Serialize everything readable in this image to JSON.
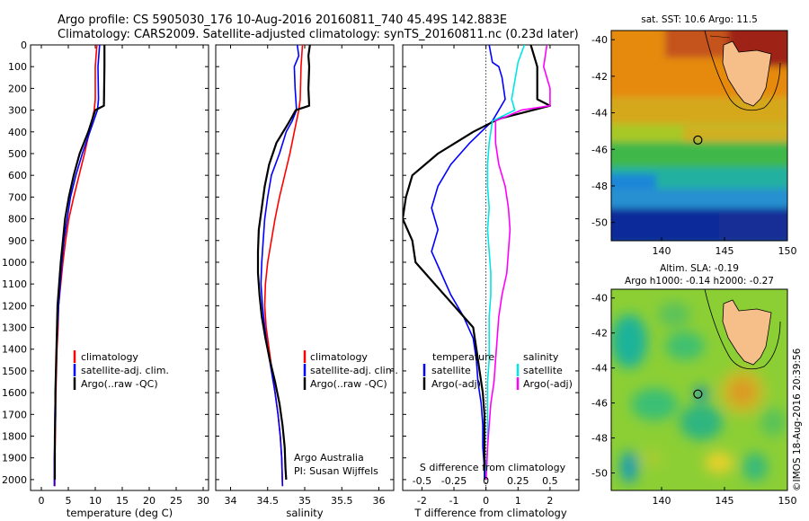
{
  "title": {
    "line1": "Argo profile: CS 5905030_176 10-Aug-2016 20160811_740 45.49S 142.883E",
    "line2": "Climatology: CARS2009. Satellite-adjusted climatology: synTS_20160811.nc (0.23d later)"
  },
  "depth_ticks": [
    "0",
    "100",
    "200",
    "300",
    "400",
    "500",
    "600",
    "700",
    "800",
    "900",
    "1000",
    "1100",
    "1200",
    "1300",
    "1400",
    "1500",
    "1600",
    "1700",
    "1800",
    "1900",
    "2000"
  ],
  "colors": {
    "climatology": "#ff0000",
    "satellite": "#0000ff",
    "argo": "#000000",
    "salinity_sat": "#00e5e5",
    "salinity_argo": "#ff00ff"
  },
  "chart_data": [
    {
      "type": "line",
      "xlabel": "temperature (deg C)",
      "xlim": [
        -2,
        31
      ],
      "ylim": [
        0,
        2050
      ],
      "xticks": [
        "0",
        "5",
        "10",
        "15",
        "20",
        "25",
        "30"
      ],
      "legend": [
        "climatology",
        "satellite-adj. clim.",
        "Argo(..raw -QC)"
      ],
      "legend_position": "lower-middle",
      "series": [
        {
          "name": "climatology",
          "points": [
            [
              10.3,
              0
            ],
            [
              10.0,
              100
            ],
            [
              10.0,
              250
            ],
            [
              9.8,
              300
            ],
            [
              8.9,
              400
            ],
            [
              8.0,
              500
            ],
            [
              7.0,
              600
            ],
            [
              6.0,
              700
            ],
            [
              5.1,
              800
            ],
            [
              4.5,
              900
            ],
            [
              4.0,
              1000
            ],
            [
              3.6,
              1100
            ],
            [
              3.2,
              1200
            ],
            [
              3.1,
              1300
            ],
            [
              2.9,
              1400
            ],
            [
              2.8,
              1500
            ],
            [
              2.7,
              1600
            ],
            [
              2.6,
              1700
            ],
            [
              2.6,
              1800
            ],
            [
              2.5,
              1900
            ],
            [
              2.5,
              2030
            ]
          ]
        },
        {
          "name": "satellite-adj. clim.",
          "points": [
            [
              10.8,
              0
            ],
            [
              10.5,
              100
            ],
            [
              10.6,
              250
            ],
            [
              10.4,
              300
            ],
            [
              9.0,
              400
            ],
            [
              7.6,
              500
            ],
            [
              6.4,
              600
            ],
            [
              5.4,
              700
            ],
            [
              4.8,
              800
            ],
            [
              4.2,
              900
            ],
            [
              3.8,
              1000
            ],
            [
              3.5,
              1100
            ],
            [
              3.2,
              1200
            ],
            [
              3.0,
              1300
            ],
            [
              2.8,
              1400
            ],
            [
              2.7,
              1500
            ],
            [
              2.6,
              1600
            ],
            [
              2.5,
              1700
            ],
            [
              2.5,
              1800
            ],
            [
              2.4,
              1900
            ],
            [
              2.4,
              2030
            ]
          ]
        },
        {
          "name": "Argo(..raw -QC)",
          "points": [
            [
              11.7,
              0
            ],
            [
              11.7,
              100
            ],
            [
              11.6,
              280
            ],
            [
              10.0,
              300
            ],
            [
              8.7,
              400
            ],
            [
              7.1,
              500
            ],
            [
              6.0,
              600
            ],
            [
              5.1,
              700
            ],
            [
              4.4,
              800
            ],
            [
              4.0,
              900
            ],
            [
              3.6,
              1000
            ],
            [
              3.3,
              1100
            ],
            [
              3.0,
              1200
            ],
            [
              2.9,
              1300
            ],
            [
              2.8,
              1400
            ],
            [
              2.7,
              1500
            ],
            [
              2.6,
              1600
            ],
            [
              2.6,
              1700
            ],
            [
              2.5,
              1800
            ],
            [
              2.5,
              1900
            ],
            [
              2.5,
              2000
            ]
          ]
        }
      ]
    },
    {
      "type": "line",
      "xlabel": "salinity",
      "xlim": [
        33.8,
        36.2
      ],
      "ylim": [
        0,
        2050
      ],
      "xticks": [
        "34",
        "34.5",
        "35",
        "35.5",
        "36"
      ],
      "legend": [
        "climatology",
        "satellite-adj. clim.",
        "Argo(..raw -QC)"
      ],
      "legend_position": "lower-right",
      "annotation": [
        "Argo Australia",
        "PI: Susan Wijffels"
      ],
      "series": [
        {
          "name": "climatology",
          "points": [
            [
              34.97,
              0
            ],
            [
              34.95,
              100
            ],
            [
              34.94,
              250
            ],
            [
              34.92,
              300
            ],
            [
              34.86,
              400
            ],
            [
              34.8,
              500
            ],
            [
              34.73,
              600
            ],
            [
              34.66,
              700
            ],
            [
              34.6,
              800
            ],
            [
              34.55,
              900
            ],
            [
              34.5,
              1000
            ],
            [
              34.47,
              1100
            ],
            [
              34.46,
              1200
            ],
            [
              34.48,
              1300
            ],
            [
              34.52,
              1400
            ],
            [
              34.56,
              1500
            ],
            [
              34.6,
              1600
            ],
            [
              34.64,
              1700
            ],
            [
              34.67,
              1800
            ],
            [
              34.69,
              1900
            ],
            [
              34.7,
              2030
            ]
          ]
        },
        {
          "name": "satellite-adj. clim.",
          "points": [
            [
              34.9,
              0
            ],
            [
              34.92,
              50
            ],
            [
              34.86,
              100
            ],
            [
              34.87,
              200
            ],
            [
              34.89,
              300
            ],
            [
              34.83,
              350
            ],
            [
              34.75,
              400
            ],
            [
              34.66,
              500
            ],
            [
              34.55,
              600
            ],
            [
              34.5,
              700
            ],
            [
              34.46,
              800
            ],
            [
              34.44,
              900
            ],
            [
              34.42,
              1000
            ],
            [
              34.41,
              1100
            ],
            [
              34.43,
              1200
            ],
            [
              34.46,
              1300
            ],
            [
              34.5,
              1400
            ],
            [
              34.55,
              1500
            ],
            [
              34.6,
              1600
            ],
            [
              34.64,
              1700
            ],
            [
              34.67,
              1800
            ],
            [
              34.69,
              1900
            ],
            [
              34.7,
              2030
            ]
          ]
        },
        {
          "name": "Argo(..raw -QC)",
          "points": [
            [
              35.07,
              0
            ],
            [
              35.05,
              50
            ],
            [
              35.06,
              100
            ],
            [
              35.05,
              200
            ],
            [
              35.06,
              280
            ],
            [
              34.88,
              300
            ],
            [
              34.78,
              360
            ],
            [
              34.62,
              450
            ],
            [
              34.52,
              550
            ],
            [
              34.46,
              650
            ],
            [
              34.42,
              750
            ],
            [
              34.38,
              850
            ],
            [
              34.37,
              950
            ],
            [
              34.37,
              1050
            ],
            [
              34.39,
              1150
            ],
            [
              34.42,
              1250
            ],
            [
              34.47,
              1350
            ],
            [
              34.53,
              1450
            ],
            [
              34.6,
              1550
            ],
            [
              34.66,
              1650
            ],
            [
              34.7,
              1750
            ],
            [
              34.73,
              1850
            ],
            [
              34.74,
              1950
            ],
            [
              34.75,
              2000
            ]
          ]
        }
      ]
    },
    {
      "type": "line",
      "xlabel": "T difference from climatology",
      "xlabel_secondary": "S difference from climatology",
      "xlim": [
        -2.6,
        2.9
      ],
      "ylim": [
        0,
        2050
      ],
      "xticks": [
        "-2",
        "-1",
        "0",
        "1",
        "2"
      ],
      "xticks_secondary": [
        "-0.5",
        "-0.25",
        "0",
        "0.25",
        "0.5"
      ],
      "legend_left_title": "temperature",
      "legend_left": [
        "satellite",
        "Argo(-adj)"
      ],
      "legend_right_title": "salinity",
      "legend_right": [
        "satellite",
        "Argo(-adj)"
      ],
      "legend_position": "lower-middle",
      "series": [
        {
          "name": "temperature satellite",
          "points": [
            [
              0.1,
              0
            ],
            [
              0.2,
              80
            ],
            [
              0.4,
              100
            ],
            [
              0.5,
              150
            ],
            [
              0.6,
              250
            ],
            [
              0.2,
              350
            ],
            [
              -0.5,
              450
            ],
            [
              -1.1,
              550
            ],
            [
              -1.5,
              650
            ],
            [
              -1.7,
              750
            ],
            [
              -1.5,
              850
            ],
            [
              -1.7,
              950
            ],
            [
              -1.4,
              1050
            ],
            [
              -1.1,
              1150
            ],
            [
              -0.7,
              1250
            ],
            [
              -0.4,
              1350
            ],
            [
              -0.3,
              1450
            ],
            [
              -0.25,
              1550
            ],
            [
              -0.15,
              1650
            ],
            [
              -0.1,
              1750
            ],
            [
              -0.1,
              1850
            ],
            [
              -0.05,
              1950
            ],
            [
              -0.05,
              2000
            ]
          ]
        },
        {
          "name": "temperature Argo(-adj)",
          "points": [
            [
              1.4,
              0
            ],
            [
              1.6,
              100
            ],
            [
              1.6,
              250
            ],
            [
              2.0,
              280
            ],
            [
              0.4,
              340
            ],
            [
              -0.4,
              400
            ],
            [
              -1.5,
              500
            ],
            [
              -2.3,
              600
            ],
            [
              -2.5,
              700
            ],
            [
              -2.6,
              800
            ],
            [
              -2.3,
              900
            ],
            [
              -2.2,
              1000
            ],
            [
              -1.6,
              1100
            ],
            [
              -1.0,
              1200
            ],
            [
              -0.4,
              1300
            ],
            [
              -0.3,
              1400
            ],
            [
              -0.2,
              1500
            ],
            [
              -0.1,
              1600
            ],
            [
              -0.05,
              1700
            ],
            [
              -0.05,
              1800
            ],
            [
              -0.05,
              1900
            ],
            [
              0.0,
              2000
            ]
          ]
        },
        {
          "name": "salinity satellite",
          "points": [
            [
              1.2,
              0
            ],
            [
              1.0,
              80
            ],
            [
              0.8,
              250
            ],
            [
              0.9,
              300
            ],
            [
              0.2,
              350
            ],
            [
              0.1,
              450
            ],
            [
              0.05,
              550
            ],
            [
              0.05,
              650
            ],
            [
              0.1,
              750
            ],
            [
              0.05,
              850
            ],
            [
              0.1,
              950
            ],
            [
              0.15,
              1050
            ],
            [
              0.15,
              1150
            ],
            [
              0.1,
              1250
            ],
            [
              0.1,
              1350
            ],
            [
              0.1,
              1450
            ],
            [
              0.05,
              1550
            ],
            [
              0.05,
              1650
            ],
            [
              0.05,
              1750
            ],
            [
              0.05,
              1850
            ],
            [
              0.0,
              1950
            ],
            [
              0.0,
              2000
            ]
          ]
        },
        {
          "name": "salinity Argo(-adj)",
          "points": [
            [
              1.9,
              0
            ],
            [
              1.8,
              100
            ],
            [
              2.0,
              200
            ],
            [
              2.0,
              280
            ],
            [
              1.1,
              300
            ],
            [
              0.3,
              350
            ],
            [
              0.3,
              450
            ],
            [
              0.4,
              550
            ],
            [
              0.6,
              650
            ],
            [
              0.7,
              750
            ],
            [
              0.75,
              850
            ],
            [
              0.7,
              950
            ],
            [
              0.65,
              1050
            ],
            [
              0.5,
              1150
            ],
            [
              0.4,
              1250
            ],
            [
              0.35,
              1350
            ],
            [
              0.3,
              1450
            ],
            [
              0.25,
              1550
            ],
            [
              0.15,
              1650
            ],
            [
              0.1,
              1750
            ],
            [
              0.05,
              1850
            ],
            [
              0.02,
              1950
            ],
            [
              0.0,
              2000
            ]
          ]
        }
      ]
    },
    {
      "type": "heatmap",
      "title": "sat. SST: 10.6  Argo: 11.5",
      "xlim": [
        136,
        150
      ],
      "ylim": [
        -51,
        -39.5
      ],
      "xticks": [
        "140",
        "145",
        "150"
      ],
      "yticks": [
        "-40",
        "-42",
        "-44",
        "-46",
        "-48",
        "-50"
      ],
      "marker": {
        "lon": 142.883,
        "lat": -45.49
      }
    },
    {
      "type": "heatmap",
      "title_line1": "Altim. SLA: -0.19",
      "title_line2": "Argo h1000: -0.14 h2000: -0.27",
      "xlim": [
        136,
        150
      ],
      "ylim": [
        -51,
        -39.5
      ],
      "xticks": [
        "140",
        "145",
        "150"
      ],
      "yticks": [
        "-40",
        "-42",
        "-44",
        "-46",
        "-48",
        "-50"
      ],
      "marker": {
        "lon": 142.883,
        "lat": -45.49
      }
    }
  ],
  "credit": "©IMOS 18-Aug-2016 20:39:56"
}
